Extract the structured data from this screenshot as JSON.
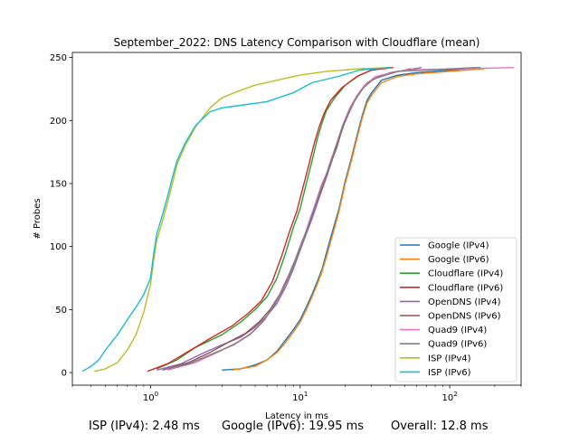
{
  "chart_data": {
    "type": "line",
    "title": "September_2022: DNS Latency Comparison with Cloudflare (mean)",
    "xlabel": "Latency in ms",
    "ylabel": "# Probes",
    "xscale": "log",
    "xlim": [
      0.3,
      300
    ],
    "ylim": [
      -10,
      254
    ],
    "xticks": [
      1,
      10,
      100
    ],
    "xtick_labels": [
      "10^0",
      "10^1",
      "10^2"
    ],
    "yticks": [
      0,
      50,
      100,
      150,
      200,
      250
    ],
    "grid": false,
    "legend_position": "lower-right",
    "series": [
      {
        "name": "Google (IPv4)",
        "color": "#1f77b4",
        "points": [
          [
            3,
            2
          ],
          [
            4,
            3
          ],
          [
            5,
            6
          ],
          [
            6,
            10
          ],
          [
            7,
            17
          ],
          [
            8,
            26
          ],
          [
            9,
            34
          ],
          [
            10,
            42
          ],
          [
            11,
            52
          ],
          [
            12,
            62
          ],
          [
            13,
            72
          ],
          [
            14,
            82
          ],
          [
            15,
            95
          ],
          [
            16,
            107
          ],
          [
            17,
            118
          ],
          [
            18,
            128
          ],
          [
            19,
            140
          ],
          [
            20,
            152
          ],
          [
            22,
            170
          ],
          [
            24,
            188
          ],
          [
            26,
            204
          ],
          [
            28,
            216
          ],
          [
            30,
            222
          ],
          [
            35,
            232
          ],
          [
            45,
            236
          ],
          [
            60,
            238
          ],
          [
            100,
            240
          ],
          [
            160,
            242
          ]
        ]
      },
      {
        "name": "Google (IPv6)",
        "color": "#ff7f0e",
        "points": [
          [
            3.5,
            2
          ],
          [
            5,
            5
          ],
          [
            6,
            10
          ],
          [
            7,
            16
          ],
          [
            8,
            24
          ],
          [
            9,
            32
          ],
          [
            10,
            40
          ],
          [
            11,
            50
          ],
          [
            12,
            60
          ],
          [
            13,
            70
          ],
          [
            14,
            80
          ],
          [
            15,
            92
          ],
          [
            16,
            104
          ],
          [
            17,
            115
          ],
          [
            18,
            126
          ],
          [
            19,
            138
          ],
          [
            20,
            150
          ],
          [
            22,
            168
          ],
          [
            24,
            186
          ],
          [
            26,
            202
          ],
          [
            28,
            214
          ],
          [
            30,
            220
          ],
          [
            35,
            230
          ],
          [
            45,
            235
          ],
          [
            60,
            237
          ],
          [
            100,
            239
          ],
          [
            170,
            241
          ]
        ]
      },
      {
        "name": "Cloudflare (IPv4)",
        "color": "#2ca02c",
        "points": [
          [
            1.1,
            3
          ],
          [
            1.5,
            10
          ],
          [
            2,
            20
          ],
          [
            3,
            30
          ],
          [
            4,
            40
          ],
          [
            5,
            50
          ],
          [
            6,
            60
          ],
          [
            7,
            75
          ],
          [
            8,
            95
          ],
          [
            9,
            115
          ],
          [
            10,
            130
          ],
          [
            11,
            150
          ],
          [
            12,
            168
          ],
          [
            13,
            185
          ],
          [
            14,
            198
          ],
          [
            15,
            208
          ],
          [
            17,
            218
          ],
          [
            20,
            228
          ],
          [
            25,
            236
          ],
          [
            30,
            240
          ],
          [
            40,
            242
          ]
        ]
      },
      {
        "name": "Cloudflare (IPv6)",
        "color": "#d62728",
        "points": [
          [
            0.95,
            1
          ],
          [
            1.3,
            7
          ],
          [
            1.8,
            17
          ],
          [
            2.5,
            27
          ],
          [
            3.5,
            37
          ],
          [
            4.5,
            47
          ],
          [
            5.5,
            57
          ],
          [
            6.5,
            72
          ],
          [
            7.5,
            92
          ],
          [
            8.5,
            112
          ],
          [
            9.5,
            128
          ],
          [
            10.5,
            148
          ],
          [
            11.5,
            166
          ],
          [
            12.5,
            183
          ],
          [
            13.5,
            196
          ],
          [
            14.5,
            206
          ],
          [
            16,
            216
          ],
          [
            19,
            226
          ],
          [
            24,
            235
          ],
          [
            30,
            240
          ],
          [
            42,
            242
          ]
        ]
      },
      {
        "name": "OpenDNS (IPv4)",
        "color": "#9467bd",
        "points": [
          [
            1.1,
            2
          ],
          [
            1.6,
            7
          ],
          [
            2.2,
            15
          ],
          [
            3,
            22
          ],
          [
            4,
            28
          ],
          [
            5,
            36
          ],
          [
            6,
            45
          ],
          [
            7,
            55
          ],
          [
            8,
            68
          ],
          [
            9,
            82
          ],
          [
            10,
            97
          ],
          [
            11,
            110
          ],
          [
            12,
            122
          ],
          [
            13,
            134
          ],
          [
            14,
            145
          ],
          [
            15,
            155
          ],
          [
            16,
            165
          ],
          [
            17,
            175
          ],
          [
            18,
            183
          ],
          [
            19,
            193
          ],
          [
            21,
            205
          ],
          [
            23,
            215
          ],
          [
            26,
            225
          ],
          [
            30,
            232
          ],
          [
            40,
            238
          ],
          [
            65,
            242
          ]
        ]
      },
      {
        "name": "OpenDNS (IPv6)",
        "color": "#8c564b",
        "points": [
          [
            1.2,
            2
          ],
          [
            1.8,
            8
          ],
          [
            2.5,
            16
          ],
          [
            3.3,
            24
          ],
          [
            4.3,
            31
          ],
          [
            5.3,
            40
          ],
          [
            6.3,
            50
          ],
          [
            7.3,
            62
          ],
          [
            8.3,
            76
          ],
          [
            9.3,
            90
          ],
          [
            10.3,
            104
          ],
          [
            11.3,
            116
          ],
          [
            12.3,
            128
          ],
          [
            13.3,
            140
          ],
          [
            14.3,
            150
          ],
          [
            15.3,
            160
          ],
          [
            16.5,
            170
          ],
          [
            17.5,
            178
          ],
          [
            18.5,
            188
          ],
          [
            20,
            200
          ],
          [
            22,
            212
          ],
          [
            25,
            222
          ],
          [
            28,
            230
          ],
          [
            35,
            236
          ],
          [
            55,
            241
          ]
        ]
      },
      {
        "name": "Quad9 (IPv4)",
        "color": "#e377c2",
        "points": [
          [
            1.3,
            2
          ],
          [
            2,
            8
          ],
          [
            2.8,
            16
          ],
          [
            3.8,
            24
          ],
          [
            4.8,
            32
          ],
          [
            5.8,
            42
          ],
          [
            6.8,
            55
          ],
          [
            7.8,
            68
          ],
          [
            8.8,
            82
          ],
          [
            9.8,
            96
          ],
          [
            10.8,
            110
          ],
          [
            11.8,
            124
          ],
          [
            12.8,
            136
          ],
          [
            13.8,
            148
          ],
          [
            15,
            158
          ],
          [
            16,
            168
          ],
          [
            17,
            177
          ],
          [
            18,
            186
          ],
          [
            19.5,
            198
          ],
          [
            21.5,
            210
          ],
          [
            24,
            220
          ],
          [
            27,
            228
          ],
          [
            32,
            235
          ],
          [
            50,
            240
          ],
          [
            270,
            242
          ]
        ]
      },
      {
        "name": "Quad9 (IPv6)",
        "color": "#7f7f7f",
        "points": [
          [
            1.2,
            2
          ],
          [
            1.8,
            7
          ],
          [
            2.6,
            15
          ],
          [
            3.6,
            22
          ],
          [
            4.6,
            30
          ],
          [
            5.6,
            40
          ],
          [
            6.6,
            52
          ],
          [
            7.6,
            65
          ],
          [
            8.6,
            79
          ],
          [
            9.6,
            93
          ],
          [
            10.6,
            107
          ],
          [
            11.6,
            120
          ],
          [
            12.6,
            132
          ],
          [
            13.6,
            144
          ],
          [
            14.8,
            155
          ],
          [
            15.8,
            165
          ],
          [
            16.8,
            174
          ],
          [
            17.8,
            183
          ],
          [
            19,
            194
          ],
          [
            21,
            206
          ],
          [
            23.5,
            217
          ],
          [
            26.5,
            226
          ],
          [
            31,
            233
          ],
          [
            45,
            239
          ],
          [
            150,
            242
          ]
        ]
      },
      {
        "name": "ISP (IPv4)",
        "color": "#bcbd22",
        "points": [
          [
            0.42,
            1
          ],
          [
            0.5,
            3
          ],
          [
            0.6,
            8
          ],
          [
            0.7,
            18
          ],
          [
            0.8,
            30
          ],
          [
            0.9,
            48
          ],
          [
            1.0,
            70
          ],
          [
            1.05,
            90
          ],
          [
            1.1,
            105
          ],
          [
            1.2,
            120
          ],
          [
            1.3,
            135
          ],
          [
            1.4,
            150
          ],
          [
            1.5,
            165
          ],
          [
            1.7,
            180
          ],
          [
            2.0,
            195
          ],
          [
            2.5,
            210
          ],
          [
            3,
            218
          ],
          [
            4,
            224
          ],
          [
            5,
            228
          ],
          [
            7,
            232
          ],
          [
            10,
            236
          ],
          [
            15,
            239
          ],
          [
            25,
            241
          ],
          [
            40,
            242
          ]
        ]
      },
      {
        "name": "ISP (IPv6)",
        "color": "#17becf",
        "points": [
          [
            0.35,
            1
          ],
          [
            0.4,
            5
          ],
          [
            0.45,
            10
          ],
          [
            0.5,
            18
          ],
          [
            0.6,
            30
          ],
          [
            0.7,
            42
          ],
          [
            0.8,
            52
          ],
          [
            0.9,
            62
          ],
          [
            1.0,
            75
          ],
          [
            1.05,
            95
          ],
          [
            1.1,
            110
          ],
          [
            1.2,
            125
          ],
          [
            1.3,
            140
          ],
          [
            1.4,
            155
          ],
          [
            1.5,
            168
          ],
          [
            1.7,
            182
          ],
          [
            2.0,
            196
          ],
          [
            2.5,
            207
          ],
          [
            3,
            210
          ],
          [
            4,
            212
          ],
          [
            6,
            215
          ],
          [
            9,
            222
          ],
          [
            12,
            230
          ],
          [
            18,
            235
          ],
          [
            25,
            240
          ],
          [
            40,
            242
          ]
        ]
      }
    ]
  },
  "footer": {
    "isp": "ISP (IPv4): 2.48 ms",
    "google": "Google (IPv6): 19.95 ms",
    "overall": "Overall: 12.8 ms"
  }
}
